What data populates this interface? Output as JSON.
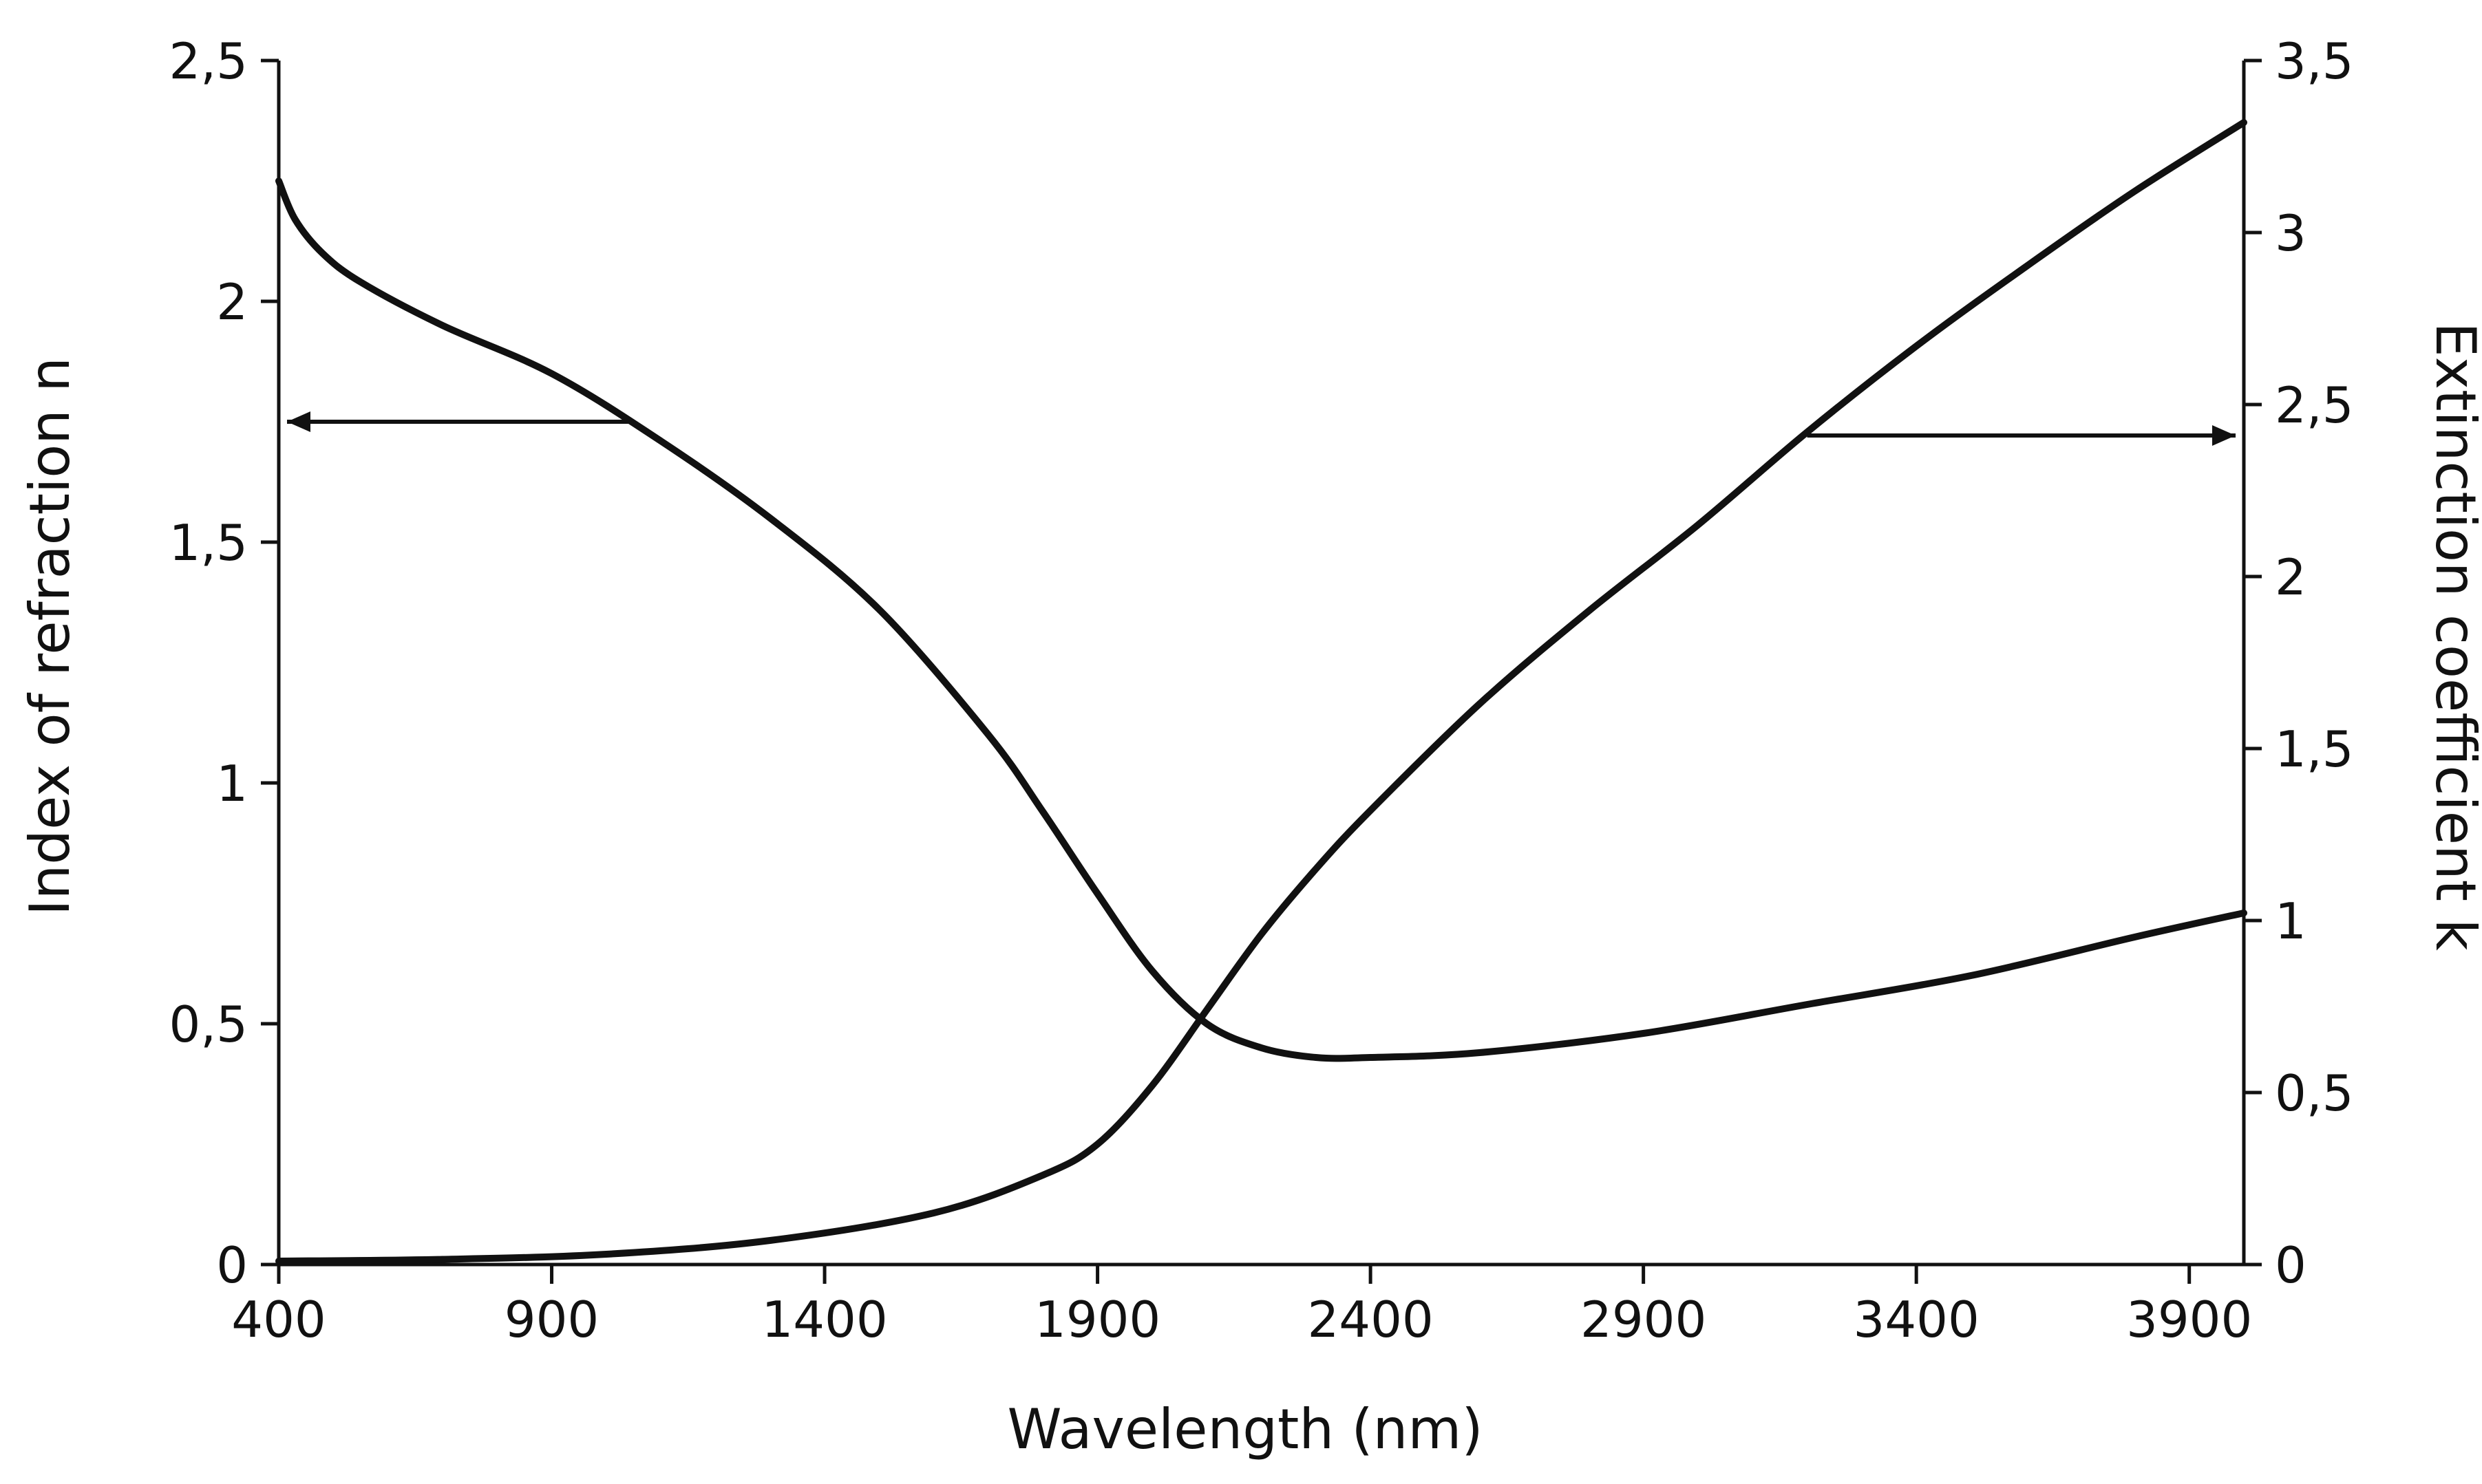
{
  "chart_data": {
    "type": "line",
    "title": "",
    "xlabel": "Wavelength (nm)",
    "ylabel_left": "Index of refraction n",
    "ylabel_right": "Extinction coefficient k",
    "xlim": [
      400,
      4000
    ],
    "ylim_left": [
      0,
      2.5
    ],
    "ylim_right": [
      0,
      3.5
    ],
    "x_ticks": [
      "400",
      "900",
      "1400",
      "1900",
      "2400",
      "2900",
      "3400",
      "3900"
    ],
    "y_left_ticks": [
      "0",
      "0,5",
      "1",
      "1,5",
      "2",
      "2,5"
    ],
    "y_right_ticks": [
      "0",
      "0,5",
      "1",
      "1,5",
      "2",
      "2,5",
      "3",
      "3,5"
    ],
    "grid": false,
    "series": [
      {
        "name": "n",
        "axis": "left",
        "points": [
          [
            400,
            2.25
          ],
          [
            430,
            2.17
          ],
          [
            480,
            2.1
          ],
          [
            550,
            2.04
          ],
          [
            700,
            1.95
          ],
          [
            900,
            1.85
          ],
          [
            1100,
            1.71
          ],
          [
            1300,
            1.55
          ],
          [
            1500,
            1.36
          ],
          [
            1700,
            1.1
          ],
          [
            1800,
            0.94
          ],
          [
            1900,
            0.77
          ],
          [
            2000,
            0.61
          ],
          [
            2100,
            0.5
          ],
          [
            2200,
            0.45
          ],
          [
            2300,
            0.43
          ],
          [
            2400,
            0.43
          ],
          [
            2600,
            0.44
          ],
          [
            2900,
            0.48
          ],
          [
            3200,
            0.54
          ],
          [
            3500,
            0.6
          ],
          [
            3800,
            0.68
          ],
          [
            4000,
            0.73
          ]
        ]
      },
      {
        "name": "k",
        "axis": "right",
        "points": [
          [
            400,
            0.01
          ],
          [
            700,
            0.015
          ],
          [
            1000,
            0.03
          ],
          [
            1300,
            0.07
          ],
          [
            1600,
            0.15
          ],
          [
            1800,
            0.26
          ],
          [
            1900,
            0.35
          ],
          [
            2000,
            0.52
          ],
          [
            2100,
            0.74
          ],
          [
            2200,
            0.96
          ],
          [
            2300,
            1.15
          ],
          [
            2400,
            1.32
          ],
          [
            2600,
            1.63
          ],
          [
            2800,
            1.9
          ],
          [
            3000,
            2.15
          ],
          [
            3200,
            2.42
          ],
          [
            3400,
            2.67
          ],
          [
            3600,
            2.9
          ],
          [
            3800,
            3.12
          ],
          [
            4000,
            3.32
          ]
        ]
      }
    ],
    "annotations": [
      {
        "type": "arrow",
        "series": "n",
        "points_to": "left axis"
      },
      {
        "type": "arrow",
        "series": "k",
        "points_to": "right axis"
      }
    ]
  }
}
